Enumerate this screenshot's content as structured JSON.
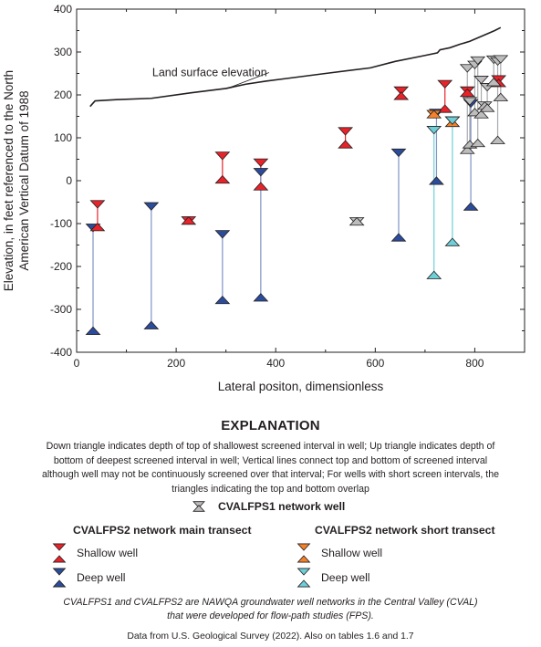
{
  "chart_data": {
    "type": "scatter",
    "xlabel": "Lateral positon, dimensionless",
    "ylabel_line1": "Elevation, in feet referenced to the North",
    "ylabel_line2": "American Vertical Datum of 1988",
    "xlim": [
      0,
      900
    ],
    "ylim": [
      -400,
      400
    ],
    "x_ticks": [
      0,
      200,
      400,
      600,
      800
    ],
    "y_ticks": [
      -400,
      -300,
      -200,
      -100,
      0,
      100,
      200,
      300,
      400
    ],
    "grid": false,
    "land_surface": {
      "label": "Land surface elevation",
      "label_x": 75,
      "label_y": 252,
      "points": [
        [
          27,
          173
        ],
        [
          37,
          186
        ],
        [
          80,
          189
        ],
        [
          150,
          192
        ],
        [
          230,
          205
        ],
        [
          300,
          215
        ],
        [
          340,
          225
        ],
        [
          380,
          232
        ],
        [
          420,
          238
        ],
        [
          500,
          250
        ],
        [
          590,
          263
        ],
        [
          640,
          278
        ],
        [
          700,
          292
        ],
        [
          725,
          298
        ],
        [
          730,
          305
        ],
        [
          750,
          310
        ],
        [
          770,
          318
        ],
        [
          790,
          325
        ],
        [
          800,
          330
        ],
        [
          830,
          345
        ],
        [
          840,
          350
        ],
        [
          852,
          357
        ]
      ]
    },
    "wells": [
      {
        "network": "main",
        "kind": "deep",
        "x": 33,
        "top": -110,
        "bottom": -350
      },
      {
        "network": "main",
        "kind": "shallow",
        "x": 42,
        "top": -55,
        "bottom": -108
      },
      {
        "network": "main",
        "kind": "deep",
        "x": 150,
        "top": -60,
        "bottom": -337
      },
      {
        "network": "main",
        "kind": "shallow",
        "x": 225,
        "top": -93,
        "bottom": -93
      },
      {
        "network": "main",
        "kind": "shallow",
        "x": 293,
        "top": 58,
        "bottom": 3
      },
      {
        "network": "main",
        "kind": "deep",
        "x": 293,
        "top": -125,
        "bottom": -278
      },
      {
        "network": "main",
        "kind": "shallow",
        "x": 370,
        "top": 42,
        "bottom": -13
      },
      {
        "network": "main",
        "kind": "deep",
        "x": 370,
        "top": 20,
        "bottom": -272
      },
      {
        "network": "main",
        "kind": "shallow",
        "x": 540,
        "top": 115,
        "bottom": 85
      },
      {
        "network": "main",
        "kind": "shallow",
        "x": 652,
        "top": 210,
        "bottom": 198
      },
      {
        "network": "main",
        "kind": "deep",
        "x": 647,
        "top": 65,
        "bottom": -132
      },
      {
        "network": "main",
        "kind": "deep",
        "x": 723,
        "top": 158,
        "bottom": 0
      },
      {
        "network": "main",
        "kind": "shallow",
        "x": 740,
        "top": 225,
        "bottom": 168
      },
      {
        "network": "main",
        "kind": "shallow",
        "x": 785,
        "top": 210,
        "bottom": 205
      },
      {
        "network": "main",
        "kind": "deep",
        "x": 792,
        "top": 180,
        "bottom": -60
      },
      {
        "network": "main",
        "kind": "shallow",
        "x": 848,
        "top": 236,
        "bottom": 228
      },
      {
        "network": "short",
        "kind": "shallow",
        "x": 718,
        "top": 155,
        "bottom": 155
      },
      {
        "network": "short",
        "kind": "deep",
        "x": 718,
        "top": 118,
        "bottom": -220
      },
      {
        "network": "short",
        "kind": "shallow",
        "x": 755,
        "top": 140,
        "bottom": 135
      },
      {
        "network": "short",
        "kind": "deep",
        "x": 755,
        "top": 140,
        "bottom": -143
      },
      {
        "network": "fps1",
        "x": 563,
        "top": -95,
        "bottom": -95
      },
      {
        "network": "fps1",
        "x": 785,
        "top": 262,
        "bottom": 72
      },
      {
        "network": "fps1",
        "x": 790,
        "top": 185,
        "bottom": 85
      },
      {
        "network": "fps1",
        "x": 800,
        "top": 270,
        "bottom": 160
      },
      {
        "network": "fps1",
        "x": 806,
        "top": 280,
        "bottom": 88
      },
      {
        "network": "fps1",
        "x": 813,
        "top": 235,
        "bottom": 155
      },
      {
        "network": "fps1",
        "x": 820,
        "top": 175,
        "bottom": 175
      },
      {
        "network": "fps1",
        "x": 825,
        "top": 218,
        "bottom": 170
      },
      {
        "network": "fps1",
        "x": 838,
        "top": 282,
        "bottom": 230
      },
      {
        "network": "fps1",
        "x": 846,
        "top": 278,
        "bottom": 95
      },
      {
        "network": "fps1",
        "x": 852,
        "top": 283,
        "bottom": 195
      }
    ]
  },
  "explanation": {
    "title": "EXPLANATION",
    "note": "Down triangle indicates depth of top of shallowest screened interval in well; Up triangle indicates depth of bottom of deepest screened interval in well; Vertical lines connect top and bottom of screened interval although well may not be continuously screened over that interval; For wells with short screen intervals, the triangles indicating the top and bottom overlap",
    "fps1_label": "CVALFPS1 network well",
    "main_head": "CVALFPS2 network main transect",
    "short_head": "CVALFPS2 network short transect",
    "shallow_label": "Shallow well",
    "deep_label": "Deep well",
    "footnote": "CVALFPS1 and CVALFPS2 are NAWQA groundwater well networks in the Central Valley (CVAL) that were developed for flow-path studies (FPS).",
    "source": "Data from U.S. Geological Survey (2022). Also on tables 1.6 and 1.7"
  },
  "colors": {
    "main_shallow": "#e8232a",
    "main_deep": "#2b4c9b",
    "short_shallow": "#f5822a",
    "short_deep": "#6fcfd8",
    "fps1": "#bdbdbd",
    "outline": "#231f20",
    "main_line_shallow": "#e8232a",
    "main_line_deep": "#7f93c4",
    "short_line_deep": "#6fcfd8",
    "fps1_line": "#a7a9ac"
  }
}
